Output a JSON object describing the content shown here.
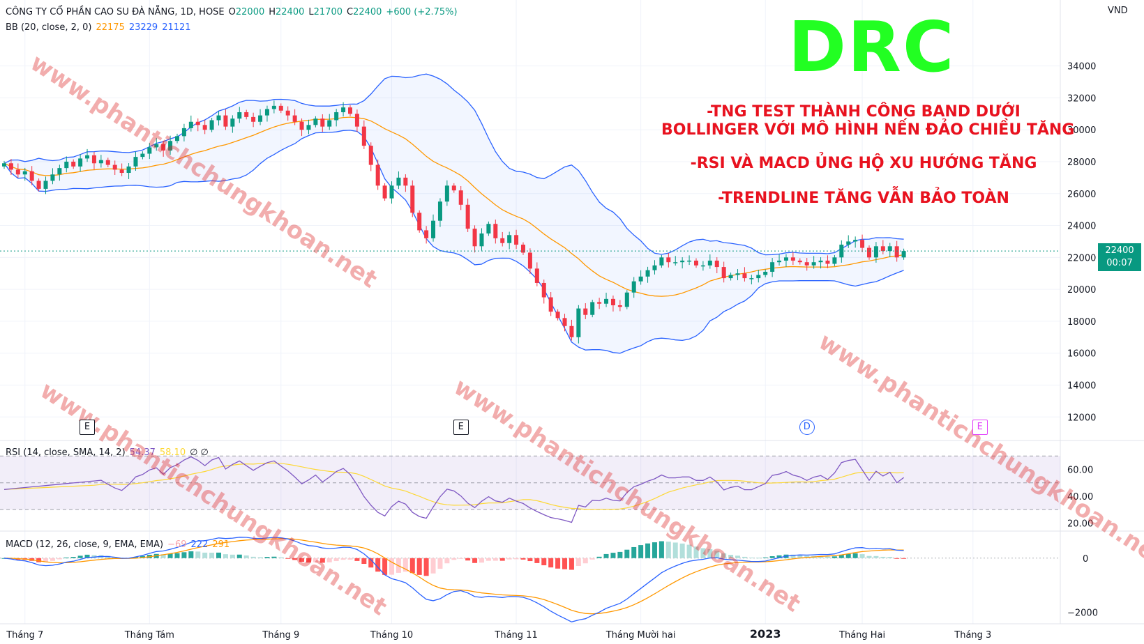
{
  "header": {
    "symbol_name": "CÔNG TY CỔ PHẦN CAO SU ĐÀ NẴNG, 1D, HOSE",
    "o_label": "O",
    "o_value": "22000",
    "h_label": "H",
    "h_value": "22400",
    "l_label": "L",
    "l_value": "21700",
    "c_label": "C",
    "c_value": "22400",
    "change": "+600 (+2.75%)",
    "bb_label": "BB (20, close, 2, 0)",
    "bb_basis": "22175",
    "bb_upper": "23229",
    "bb_lower": "21121",
    "currency": "VND"
  },
  "annotations": {
    "ticker": "DRC",
    "line1a": "-TNG TEST THÀNH CÔNG BAND DƯỚI",
    "line1b": "BOLLINGER VỚI MÔ HÌNH NẾN ĐẢO CHIỀU TĂNG",
    "line2": "-RSI VÀ MACD ỦNG HỘ XU HƯỚNG TĂNG",
    "line3": "-TRENDLINE TĂNG VẪN BẢO TOÀN",
    "watermark": "www.phantichchungkhoan.net"
  },
  "last_price": {
    "value": "22400",
    "countdown": "00:07"
  },
  "rsi": {
    "label": "RSI (14, close, SMA, 14, 2)",
    "value": "54.37",
    "sma": "58.10",
    "extra": "∅ ∅"
  },
  "macd": {
    "label": "MACD (12, 26, close, 9, EMA, EMA)",
    "hist": "−69",
    "macd": "222",
    "signal": "291"
  },
  "events": [
    {
      "text": "E",
      "color": "#131722",
      "shape": "square",
      "t": 12
    },
    {
      "text": "E",
      "color": "#131722",
      "shape": "square",
      "t": 66
    },
    {
      "text": "D",
      "color": "#2962ff",
      "shape": "circle",
      "t": 116
    },
    {
      "text": "E",
      "color": "#e040fb",
      "shape": "square",
      "t": 141
    }
  ],
  "colors": {
    "up": "#089981",
    "down": "#f23645",
    "bb_mid": "#ff9800",
    "bb_band": "#2962ff",
    "bb_fill": "#2962ff",
    "rsi": "#7e57c2",
    "rsi_sma": "#fdd835",
    "macd": "#2962ff",
    "signal": "#ff9800"
  },
  "chart_data": [
    {
      "type": "candlestick",
      "title": "CÔNG TY CỔ PHẦN CAO SU ĐÀ NẴNG, 1D, HOSE",
      "x_ticks": [
        {
          "label": "Tháng 7",
          "t": 3
        },
        {
          "label": "Tháng Tám",
          "t": 21
        },
        {
          "label": "Tháng 9",
          "t": 40
        },
        {
          "label": "Tháng 10",
          "t": 56
        },
        {
          "label": "Tháng 11",
          "t": 74
        },
        {
          "label": "Tháng Mười hai",
          "t": 92
        },
        {
          "label": "2023",
          "t": 110,
          "bold": true
        },
        {
          "label": "Tháng Hai",
          "t": 124
        },
        {
          "label": "Tháng 3",
          "t": 140
        }
      ],
      "y_ticks": [
        12000,
        14000,
        16000,
        18000,
        20000,
        22000,
        24000,
        26000,
        28000,
        30000,
        32000,
        34000
      ],
      "ylim": [
        11400,
        35600
      ],
      "closes": [
        27900,
        27500,
        27200,
        27400,
        26800,
        26300,
        26800,
        27200,
        27600,
        28000,
        27700,
        28200,
        28400,
        27900,
        28100,
        27800,
        27500,
        27300,
        27700,
        28300,
        28500,
        28900,
        29100,
        28700,
        29300,
        29600,
        30100,
        30500,
        30300,
        30000,
        30600,
        30900,
        30200,
        30700,
        31100,
        30800,
        30500,
        30900,
        31300,
        31500,
        31200,
        30900,
        30500,
        30000,
        30300,
        30700,
        30200,
        30600,
        31100,
        31400,
        31000,
        30200,
        29000,
        27800,
        26500,
        25700,
        26500,
        27000,
        26500,
        24800,
        23700,
        23200,
        24300,
        25500,
        26500,
        26200,
        25300,
        23800,
        22700,
        23500,
        24100,
        23200,
        22900,
        23400,
        22800,
        22300,
        21300,
        20400,
        19500,
        18600,
        18200,
        17700,
        17000,
        18800,
        18400,
        19200,
        19100,
        19400,
        19000,
        18900,
        19800,
        20500,
        20800,
        21200,
        21500,
        22000,
        21700,
        21700,
        21800,
        21800,
        21500,
        21500,
        21800,
        21400,
        20700,
        20900,
        21000,
        20700,
        20700,
        20900,
        21100,
        21700,
        21800,
        22000,
        21800,
        21700,
        21500,
        21700,
        21800,
        21600,
        22000,
        22800,
        23000,
        23100,
        22600,
        22000,
        22700,
        22400,
        22700,
        22000,
        22400
      ],
      "bb_window": 20,
      "bb_mult": 2,
      "rsi_ylim": [
        15,
        80
      ],
      "rsi_levels": [
        30,
        50,
        70
      ],
      "rsi_ticks": [
        20,
        40,
        60
      ],
      "macd_ylim": [
        -2300,
        1000
      ],
      "macd_ticks": [
        0,
        -2000
      ]
    }
  ]
}
